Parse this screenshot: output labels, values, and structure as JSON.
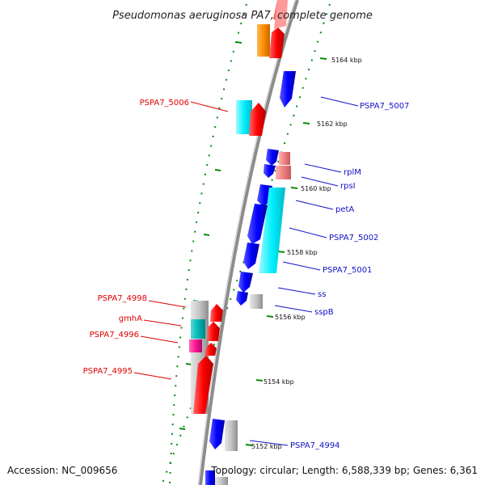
{
  "title": "Pseudomonas aeruginosa PA7, complete genome",
  "footer": {
    "accession": "Accession: NC_009656",
    "topology": "Topology: circular; Length: 6,588,339 bp; Genes: 6,361"
  },
  "kbp_labels": [
    "5164 kbp",
    "5162 kbp",
    "5160 kbp",
    "5158 kbp",
    "5156 kbp",
    "5154 kbp",
    "5152 kbp"
  ],
  "gene_labels": {
    "left": [
      "PSPA7_5006",
      "PSPA7_4998",
      "gmhA",
      "PSPA7_4996",
      "PSPA7_4995"
    ],
    "right": [
      "PSPA7_5007",
      "rplM",
      "rpsI",
      "petA",
      "PSPA7_5002",
      "PSPA7_5001",
      "ss",
      "sspB",
      "PSPA7_4994"
    ]
  },
  "colors": {
    "forward_strand": "#ff0000",
    "reverse_strand": "#0000ff",
    "orange_gene": "#ff8c00",
    "cyan_gene": "#00e5ff",
    "teal_gene": "#00b5b5",
    "magenta_gene": "#ff1493",
    "pink_gene": "#f08080",
    "gray_gene": "#c0c0c0",
    "tick_green": "#0a8a0a",
    "backbone": "#8c8c8c"
  }
}
